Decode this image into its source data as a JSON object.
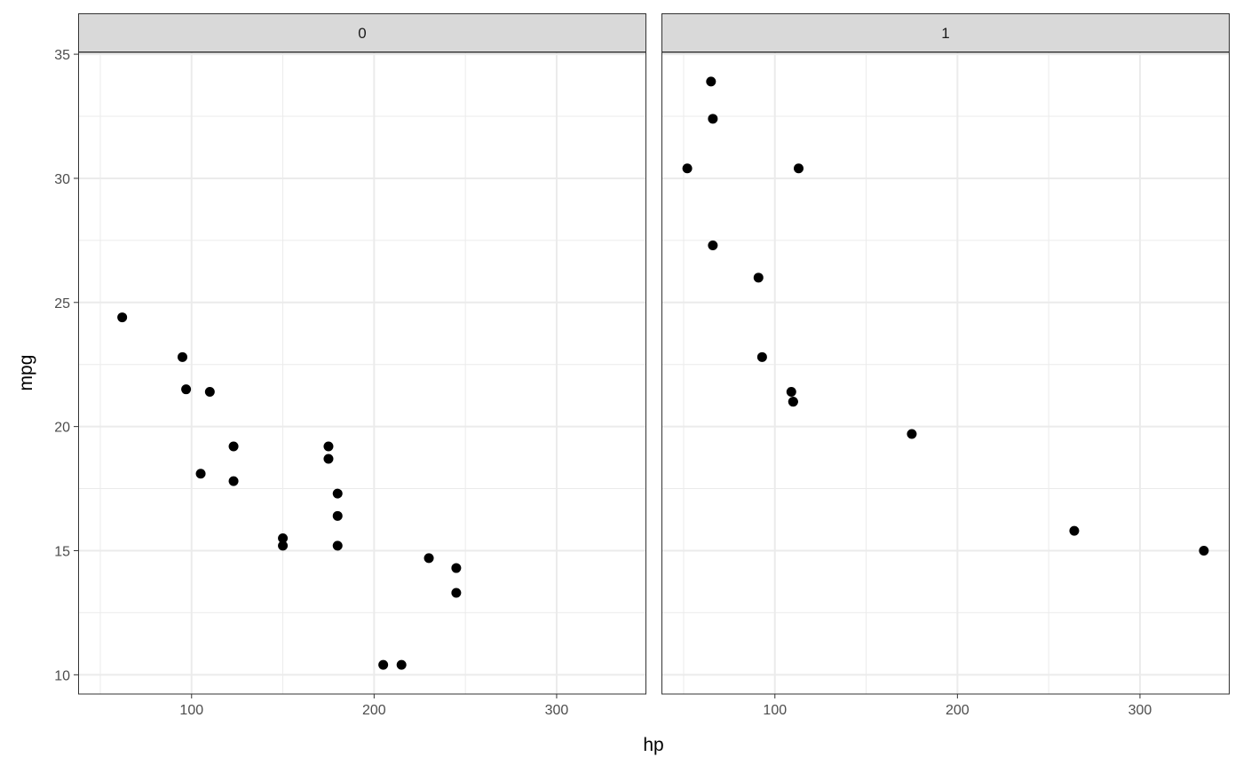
{
  "chart_data": {
    "type": "scatter",
    "xlabel": "hp",
    "ylabel": "mpg",
    "xlim": [
      37.85,
      349.15
    ],
    "ylim": [
      9.225,
      35.075
    ],
    "xticks": [
      100,
      200,
      300
    ],
    "yticks": [
      10,
      15,
      20,
      25,
      30,
      35
    ],
    "grid": true,
    "colors": {
      "point": "#000000",
      "strip": "#d9d9d9",
      "border": "#333333",
      "grid": "#ebebeb",
      "tick_text": "#4d4d4d"
    },
    "panels": [
      {
        "label": "0",
        "points": [
          {
            "x": 110,
            "y": 21.4
          },
          {
            "x": 175,
            "y": 18.7
          },
          {
            "x": 105,
            "y": 18.1
          },
          {
            "x": 245,
            "y": 14.3
          },
          {
            "x": 62,
            "y": 24.4
          },
          {
            "x": 95,
            "y": 22.8
          },
          {
            "x": 123,
            "y": 19.2
          },
          {
            "x": 123,
            "y": 17.8
          },
          {
            "x": 180,
            "y": 16.4
          },
          {
            "x": 180,
            "y": 17.3
          },
          {
            "x": 180,
            "y": 15.2
          },
          {
            "x": 205,
            "y": 10.4
          },
          {
            "x": 215,
            "y": 10.4
          },
          {
            "x": 230,
            "y": 14.7
          },
          {
            "x": 97,
            "y": 21.5
          },
          {
            "x": 150,
            "y": 15.5
          },
          {
            "x": 150,
            "y": 15.2
          },
          {
            "x": 245,
            "y": 13.3
          },
          {
            "x": 175,
            "y": 19.2
          }
        ]
      },
      {
        "label": "1",
        "points": [
          {
            "x": 110,
            "y": 21.0
          },
          {
            "x": 110,
            "y": 21.0
          },
          {
            "x": 93,
            "y": 22.8
          },
          {
            "x": 66,
            "y": 32.4
          },
          {
            "x": 52,
            "y": 30.4
          },
          {
            "x": 65,
            "y": 33.9
          },
          {
            "x": 66,
            "y": 27.3
          },
          {
            "x": 91,
            "y": 26.0
          },
          {
            "x": 113,
            "y": 30.4
          },
          {
            "x": 264,
            "y": 15.8
          },
          {
            "x": 175,
            "y": 19.7
          },
          {
            "x": 335,
            "y": 15.0
          },
          {
            "x": 109,
            "y": 21.4
          }
        ]
      }
    ]
  }
}
